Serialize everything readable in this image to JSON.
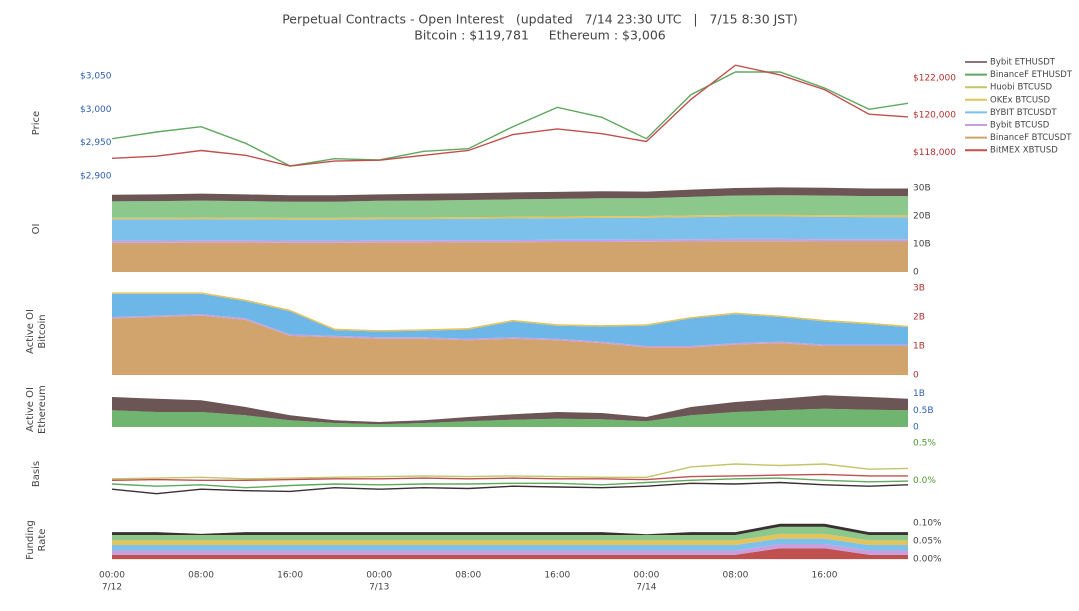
{
  "title": "Perpetual Contracts - Open Interest   (updated   7/14 23:30 UTC   |   7/15 8:30 JST)",
  "subtitle": "Bitcoin : $119,781     Ethereum : $3,006",
  "legend": [
    {
      "name": "Bybit ETHUSDT",
      "color": "#8a7676"
    },
    {
      "name": "BinanceF ETHUSDT",
      "color": "#5fa85f"
    },
    {
      "name": "Huobi BTCUSD",
      "color": "#c4c46a"
    },
    {
      "name": "OKEx BTCUSD",
      "color": "#e3c35a"
    },
    {
      "name": "BYBIT BTCUSDT",
      "color": "#7cc0ec"
    },
    {
      "name": "Bybit BTCUSD",
      "color": "#c8a0e0"
    },
    {
      "name": "BinanceF BTCUSDT",
      "color": "#d0a46c"
    },
    {
      "name": "BitMEX XBTUSD",
      "color": "#c0504d"
    }
  ],
  "shared_x": [
    0,
    4,
    8,
    12,
    16,
    20,
    24,
    28,
    32,
    36,
    40,
    44,
    48,
    52,
    56,
    60,
    64,
    68,
    71.5
  ],
  "xlim": [
    0,
    71.5
  ],
  "xticks": [
    {
      "value": 0,
      "label": "00:00"
    },
    {
      "value": 8,
      "label": "08:00"
    },
    {
      "value": 16,
      "label": "16:00"
    },
    {
      "value": 24,
      "label": "00:00"
    },
    {
      "value": 32,
      "label": "08:00"
    },
    {
      "value": 40,
      "label": "16:00"
    },
    {
      "value": 48,
      "label": "00:00"
    },
    {
      "value": 56,
      "label": "08:00"
    },
    {
      "value": 64,
      "label": "16:00"
    }
  ],
  "x_date_labels": [
    {
      "value": 0,
      "label": "7/12"
    },
    {
      "value": 24,
      "label": "7/13"
    },
    {
      "value": 48,
      "label": "7/14"
    }
  ],
  "chart_data": [
    {
      "type": "line",
      "ylabel": [
        "Price"
      ],
      "ylim": [
        2888,
        3071
      ],
      "yticks": [
        {
          "value": 2900,
          "label": "$2,900"
        },
        {
          "value": 2950,
          "label": "$2,950"
        },
        {
          "value": 3000,
          "label": "$3,000"
        },
        {
          "value": 3050,
          "label": "$3,050"
        }
      ],
      "ytick_color": "#3060b0",
      "y2lim": [
        116300,
        122850
      ],
      "y2ticks": [
        {
          "value": 118000,
          "label": "$118,000"
        },
        {
          "value": 120000,
          "label": "$120,000"
        },
        {
          "value": 122000,
          "label": "$122,000"
        }
      ],
      "y2tick_color": "#b03030",
      "series": [
        {
          "color": "#5fa85f",
          "values": [
            2956,
            2966,
            2974,
            2949,
            2915,
            2926,
            2924,
            2937,
            2941,
            2974,
            3003,
            2988,
            2956,
            3022,
            3056,
            3056,
            3032,
            3000,
            3009
          ]
        },
        {
          "color": "#c0504d",
          "axis": "y2",
          "values": [
            117680,
            117790,
            118100,
            117840,
            117260,
            117530,
            117580,
            117840,
            118100,
            118950,
            119260,
            119000,
            118580,
            120840,
            122680,
            122160,
            121370,
            120050,
            119900
          ]
        }
      ]
    },
    {
      "type": "area",
      "stacked": true,
      "ylabel": [
        "OI"
      ],
      "ylim": [
        0,
        30.7
      ],
      "yticks": [
        0,
        {
          "value": 10,
          "label": "10B"
        },
        {
          "value": 20,
          "label": "20B"
        },
        {
          "value": 30,
          "label": "30B"
        }
      ],
      "ytick_color": "#444444",
      "series": [
        {
          "color": "#d0a46c",
          "values": [
            10.4,
            10.4,
            10.5,
            10.5,
            10.4,
            10.4,
            10.5,
            10.5,
            10.6,
            10.6,
            10.7,
            10.7,
            10.8,
            10.9,
            11,
            11,
            10.9,
            10.9,
            10.9
          ]
        },
        {
          "color": "#c8a0e0",
          "values": [
            0.8,
            0.8,
            0.8,
            0.8,
            0.8,
            0.8,
            0.8,
            0.8,
            0.8,
            0.8,
            0.8,
            0.8,
            0.8,
            0.8,
            0.8,
            0.8,
            0.8,
            0.8,
            0.8
          ]
        },
        {
          "color": "#7cc0ec",
          "values": [
            7.6,
            7.6,
            7.6,
            7.5,
            7.5,
            7.5,
            7.6,
            7.6,
            7.6,
            7.7,
            7.7,
            7.8,
            7.8,
            7.9,
            8,
            8,
            8,
            7.9,
            7.9
          ]
        },
        {
          "color": "#e3c35a",
          "values": [
            0.6,
            0.6,
            0.6,
            0.6,
            0.6,
            0.6,
            0.6,
            0.6,
            0.6,
            0.6,
            0.6,
            0.6,
            0.6,
            0.6,
            0.6,
            0.6,
            0.6,
            0.6,
            0.6
          ]
        },
        {
          "color": "#8cc88c",
          "values": [
            5.8,
            5.9,
            6,
            5.9,
            5.8,
            5.8,
            5.9,
            6,
            6.1,
            6.2,
            6.3,
            6.4,
            6.3,
            6.6,
            6.9,
            7,
            7,
            6.9,
            6.9
          ]
        },
        {
          "color": "#6b5555",
          "values": [
            2.4,
            2.4,
            2.5,
            2.4,
            2.3,
            2.3,
            2.3,
            2.4,
            2.4,
            2.5,
            2.5,
            2.5,
            2.4,
            2.6,
            2.7,
            2.8,
            2.8,
            2.7,
            2.7
          ]
        }
      ]
    },
    {
      "type": "area",
      "stacked": true,
      "ylabel": [
        "Active OI",
        "Bitcoin"
      ],
      "ylim": [
        0,
        3
      ],
      "yticks": [
        0,
        {
          "value": 1,
          "label": "1B"
        },
        {
          "value": 2,
          "label": "2B"
        },
        {
          "value": 3,
          "label": "3B"
        }
      ],
      "ytick_color": "#b03030",
      "series": [
        {
          "color": "#d0a46c",
          "values": [
            1.95,
            2,
            2.05,
            1.9,
            1.35,
            1.3,
            1.25,
            1.25,
            1.2,
            1.25,
            1.2,
            1.1,
            0.95,
            0.95,
            1.05,
            1.1,
            1,
            1,
            1
          ]
        },
        {
          "color": "#c8a0e0",
          "values": [
            0.05,
            0.05,
            0.05,
            0.05,
            0.05,
            0.05,
            0.05,
            0.05,
            0.05,
            0.05,
            0.05,
            0.05,
            0.05,
            0.05,
            0.05,
            0.05,
            0.05,
            0.05,
            0.05
          ]
        },
        {
          "color": "#6cb6e8",
          "values": [
            0.8,
            0.75,
            0.7,
            0.6,
            0.8,
            0.2,
            0.2,
            0.23,
            0.32,
            0.55,
            0.45,
            0.52,
            0.7,
            0.95,
            1,
            0.85,
            0.8,
            0.7,
            0.6
          ]
        },
        {
          "color": "#e3c35a",
          "values": [
            0.05,
            0.05,
            0.05,
            0.05,
            0.05,
            0.05,
            0.05,
            0.05,
            0.05,
            0.05,
            0.05,
            0.05,
            0.05,
            0.05,
            0.05,
            0.05,
            0.05,
            0.05,
            0.05
          ]
        }
      ]
    },
    {
      "type": "area",
      "stacked": true,
      "ylabel": [
        "Active OI",
        "Ethereum"
      ],
      "ylim": [
        0,
        1.05
      ],
      "yticks": [
        0,
        {
          "value": 0.5,
          "label": "0.5B"
        },
        {
          "value": 1,
          "label": "1B"
        }
      ],
      "ytick_color": "#3060b0",
      "series": [
        {
          "color": "#6fb46f",
          "values": [
            0.5,
            0.45,
            0.45,
            0.35,
            0.2,
            0.12,
            0.08,
            0.12,
            0.17,
            0.22,
            0.25,
            0.23,
            0.17,
            0.35,
            0.45,
            0.5,
            0.55,
            0.52,
            0.5
          ]
        },
        {
          "color": "#6b5555",
          "values": [
            0.4,
            0.4,
            0.35,
            0.25,
            0.15,
            0.08,
            0.07,
            0.08,
            0.13,
            0.16,
            0.2,
            0.19,
            0.13,
            0.25,
            0.3,
            0.35,
            0.4,
            0.38,
            0.35
          ]
        }
      ]
    },
    {
      "type": "line",
      "ylabel": [
        "Basis"
      ],
      "ylim": [
        -0.4,
        0.57
      ],
      "yticks": [
        {
          "value": 0,
          "label": "0.0%"
        },
        {
          "value": 0.5,
          "label": "0.5%"
        }
      ],
      "ytick_color": "#4a9a30",
      "series": [
        {
          "color": "#c4c46a",
          "values": [
            0.02,
            0.03,
            0.04,
            0.02,
            0.03,
            0.04,
            0.05,
            0.06,
            0.05,
            0.06,
            0.05,
            0.04,
            0.04,
            0.18,
            0.22,
            0.2,
            0.22,
            0.15,
            0.16
          ]
        },
        {
          "color": "#c0504d",
          "values": [
            0,
            0.01,
            0,
            0,
            0.01,
            0.02,
            0.02,
            0.03,
            0.02,
            0.03,
            0.02,
            0.02,
            0.01,
            0.05,
            0.06,
            0.07,
            0.08,
            0.06,
            0.06
          ]
        },
        {
          "color": "#5fa85f",
          "values": [
            -0.05,
            -0.08,
            -0.06,
            -0.1,
            -0.07,
            -0.05,
            -0.06,
            -0.05,
            -0.05,
            -0.04,
            -0.04,
            -0.06,
            -0.03,
            0,
            0.02,
            0.03,
            0,
            -0.02,
            -0.01
          ]
        },
        {
          "color": "#3a3030",
          "values": [
            -0.12,
            -0.18,
            -0.12,
            -0.14,
            -0.15,
            -0.1,
            -0.12,
            -0.1,
            -0.11,
            -0.08,
            -0.09,
            -0.1,
            -0.08,
            -0.04,
            -0.05,
            -0.03,
            -0.06,
            -0.08,
            -0.06
          ]
        }
      ]
    },
    {
      "type": "area",
      "stacked": true,
      "ylabel": [
        "Funding",
        "Rate"
      ],
      "ylim": [
        -0.008,
        0.114
      ],
      "yticks": [
        {
          "value": 0,
          "label": "0.00%"
        },
        {
          "value": 0.05,
          "label": "0.05%"
        },
        {
          "value": 0.1,
          "label": "0.10%"
        }
      ],
      "ytick_color": "#444444",
      "series": [
        {
          "color": "#c0504d",
          "values": [
            0.012,
            0.012,
            0.012,
            0.012,
            0.012,
            0.012,
            0.012,
            0.012,
            0.012,
            0.012,
            0.012,
            0.012,
            0.012,
            0.012,
            0.012,
            0.03,
            0.03,
            0.012,
            0.012
          ]
        },
        {
          "color": "#c8a0e0",
          "values": [
            0.012,
            0.012,
            0.012,
            0.012,
            0.012,
            0.012,
            0.012,
            0.012,
            0.012,
            0.012,
            0.012,
            0.012,
            0.012,
            0.012,
            0.012,
            0.012,
            0.012,
            0.012,
            0.012
          ]
        },
        {
          "color": "#7cc0ec",
          "values": [
            0.015,
            0.015,
            0.015,
            0.015,
            0.015,
            0.015,
            0.015,
            0.015,
            0.015,
            0.015,
            0.015,
            0.015,
            0.015,
            0.015,
            0.015,
            0.015,
            0.015,
            0.015,
            0.015
          ]
        },
        {
          "color": "#e3c35a",
          "values": [
            0.013,
            0.013,
            0.013,
            0.013,
            0.013,
            0.013,
            0.013,
            0.013,
            0.013,
            0.013,
            0.013,
            0.013,
            0.013,
            0.013,
            0.013,
            0.013,
            0.013,
            0.013,
            0.013
          ]
        },
        {
          "color": "#8cc88c",
          "values": [
            0.015,
            0.015,
            0.015,
            0.015,
            0.015,
            0.015,
            0.015,
            0.015,
            0.015,
            0.015,
            0.015,
            0.015,
            0.015,
            0.015,
            0.015,
            0.02,
            0.02,
            0.015,
            0.015
          ]
        },
        {
          "color": "#3a3030",
          "values": [
            0.008,
            0.008,
            0.003,
            0.008,
            0.008,
            0.008,
            0.008,
            0.008,
            0.008,
            0.008,
            0.008,
            0.008,
            0.002,
            0.008,
            0.008,
            0.008,
            0.008,
            0.008,
            0.008
          ]
        }
      ]
    }
  ]
}
